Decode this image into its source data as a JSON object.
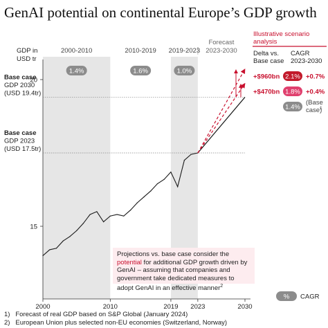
{
  "title": "GenAI potential on continental Europe’s GDP growth",
  "chart_data": {
    "type": "line",
    "ylabel_lines": [
      "GDP in",
      "USD tr"
    ],
    "yticks": [
      15,
      20
    ],
    "xticks": [
      2000,
      2010,
      2019,
      2023,
      2030
    ],
    "periods": [
      {
        "label": "2000-2010",
        "cagr": "1.4%",
        "start": 2000,
        "end": 2010,
        "shaded": true
      },
      {
        "label": "2010-2019",
        "cagr": "1.6%",
        "start": 2010,
        "end": 2019,
        "shaded": false
      },
      {
        "label": "2019-2023",
        "cagr": "1.0%",
        "start": 2019,
        "end": 2023,
        "shaded": true
      },
      {
        "label_lines": [
          "Forecast",
          "2023-2030"
        ],
        "start": 2023,
        "end": 2030,
        "shaded": false
      }
    ],
    "series": [
      {
        "x": [
          2000,
          2001,
          2002,
          2003,
          2004,
          2005,
          2006,
          2007,
          2008,
          2009,
          2010,
          2011,
          2012,
          2013,
          2014,
          2015,
          2016,
          2017,
          2018,
          2019,
          2020,
          2021,
          2022,
          2023
        ],
        "values": [
          14.0,
          14.2,
          14.25,
          14.5,
          14.65,
          14.85,
          15.1,
          15.4,
          15.5,
          15.15,
          15.35,
          15.4,
          15.35,
          15.55,
          15.8,
          16.0,
          16.2,
          16.45,
          16.6,
          16.85,
          16.35,
          17.25,
          17.45,
          17.5
        ]
      }
    ],
    "forecast": [
      {
        "case": "base",
        "from": [
          2023,
          17.5
        ],
        "to": [
          2030,
          19.4
        ]
      },
      {
        "case": "+$470bn",
        "from": [
          2023,
          17.5
        ],
        "to": [
          2030,
          19.87
        ]
      },
      {
        "case": "+$960bn",
        "from": [
          2023,
          17.5
        ],
        "to": [
          2030,
          20.36
        ]
      }
    ],
    "base_case_labels": [
      {
        "lines": [
          "Base case",
          "GDP 2030",
          "(USD 19.4tr)"
        ],
        "y": 19.4
      },
      {
        "lines": [
          "Base case",
          "GDP 2023",
          "(USD 17.5tr)"
        ],
        "y": 17.5
      }
    ],
    "scenario": {
      "header": "Illustrative scenario analysis",
      "col1_lines": [
        "Delta vs.",
        "Base case"
      ],
      "col2_lines": [
        "CAGR",
        "2023-2030"
      ],
      "rows": [
        {
          "delta": "+$960bn",
          "cagr": "2.1%",
          "delta_cagr": "+0.7%"
        },
        {
          "delta": "+$470bn",
          "cagr": "1.8%",
          "delta_cagr": "+0.4%"
        }
      ],
      "base": {
        "cagr": "1.4%",
        "label_lines": [
          "(Base",
          "case)"
        ],
        "superscript": "1"
      }
    },
    "note": {
      "before": "Projections vs. base case consider the ",
      "highlight": "potential",
      "after": " for additional GDP growth driven by GenAI – assuming that companies and government take dedicated measures to adopt GenAI in an effective manner",
      "superscript": "2"
    },
    "legend": {
      "symbol": "%",
      "label": "CAGR"
    },
    "colors": {
      "accent": "#c8102e",
      "shade": "#e6e6e6",
      "pill": "#8c8c8c",
      "line": "#1a1a1a"
    }
  },
  "footnotes": [
    "1)   Forecast of real GDP based on S&P Global (January 2024)",
    "2)   European Union plus selected non-EU economies (Switzerland, Norway)"
  ]
}
